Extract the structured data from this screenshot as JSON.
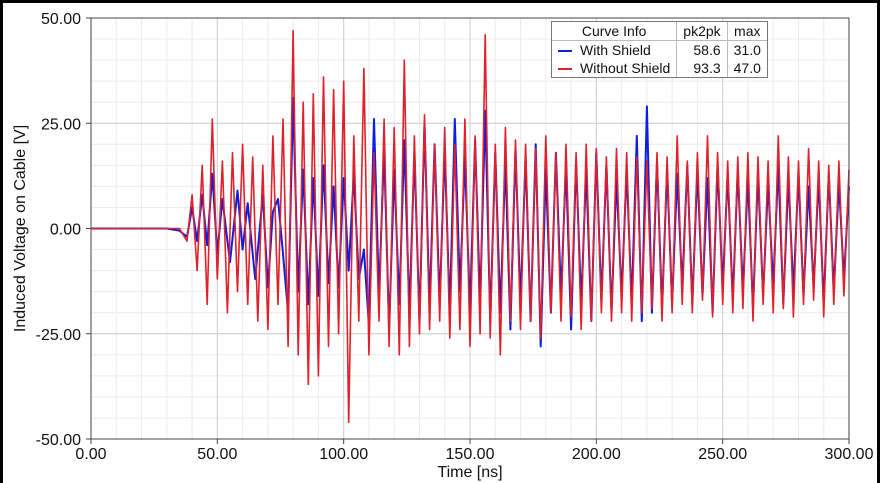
{
  "chart_data": {
    "type": "line",
    "xlabel": "Time [ns]",
    "ylabel": "Induced Voltage on Cable [V]",
    "xlim": [
      0,
      300
    ],
    "ylim": [
      -50,
      50
    ],
    "x_ticks": [
      "0.00",
      "50.00",
      "100.00",
      "150.00",
      "200.00",
      "250.00",
      "300.00"
    ],
    "y_ticks": [
      "50.00",
      "25.00",
      "0.00",
      "-25.00",
      "-50.00"
    ],
    "grid": true,
    "legend_position": "top-right",
    "legend": {
      "headers": [
        "Curve Info",
        "pk2pk",
        "max"
      ]
    },
    "series": [
      {
        "name": "With Shield",
        "color": "#0a1fe0",
        "pk2pk": "58.6",
        "max": "31.0",
        "points": [
          [
            0,
            0
          ],
          [
            30,
            0
          ],
          [
            35,
            -0.5
          ],
          [
            38,
            -2
          ],
          [
            40,
            5
          ],
          [
            42,
            -3
          ],
          [
            44,
            8
          ],
          [
            46,
            -4
          ],
          [
            48,
            13
          ],
          [
            50,
            -6
          ],
          [
            52,
            7
          ],
          [
            55,
            -8
          ],
          [
            58,
            9
          ],
          [
            60,
            -5
          ],
          [
            62,
            6
          ],
          [
            65,
            -12
          ],
          [
            68,
            8
          ],
          [
            70,
            -14
          ],
          [
            72,
            4
          ],
          [
            74,
            7
          ],
          [
            76,
            -6
          ],
          [
            78,
            -20
          ],
          [
            80,
            31
          ],
          [
            82,
            -15
          ],
          [
            84,
            14
          ],
          [
            86,
            -18
          ],
          [
            88,
            12
          ],
          [
            90,
            -16
          ],
          [
            92,
            15
          ],
          [
            94,
            -13
          ],
          [
            96,
            10
          ],
          [
            98,
            -14
          ],
          [
            100,
            12
          ],
          [
            102,
            -10
          ],
          [
            104,
            13
          ],
          [
            106,
            -12
          ],
          [
            108,
            -5
          ],
          [
            110,
            -23
          ],
          [
            112,
            26
          ],
          [
            114,
            -16
          ],
          [
            116,
            19
          ],
          [
            118,
            -24
          ],
          [
            120,
            14
          ],
          [
            122,
            -18
          ],
          [
            124,
            21
          ],
          [
            126,
            -20
          ],
          [
            128,
            18
          ],
          [
            130,
            -22
          ],
          [
            132,
            25
          ],
          [
            134,
            -19
          ],
          [
            136,
            20
          ],
          [
            138,
            -18
          ],
          [
            140,
            19
          ],
          [
            142,
            -20
          ],
          [
            144,
            26
          ],
          [
            146,
            -15
          ],
          [
            148,
            17
          ],
          [
            150,
            -20
          ],
          [
            152,
            21
          ],
          [
            154,
            -18
          ],
          [
            156,
            28
          ],
          [
            158,
            -22
          ],
          [
            160,
            18
          ],
          [
            162,
            -20
          ],
          [
            164,
            16
          ],
          [
            166,
            -24
          ],
          [
            168,
            19
          ],
          [
            170,
            -18
          ],
          [
            172,
            17
          ],
          [
            174,
            -22
          ],
          [
            176,
            20
          ],
          [
            178,
            -28
          ],
          [
            180,
            14
          ],
          [
            182,
            -20
          ],
          [
            184,
            18
          ],
          [
            186,
            -16
          ],
          [
            188,
            15
          ],
          [
            190,
            -24
          ],
          [
            192,
            16
          ],
          [
            194,
            -18
          ],
          [
            196,
            14
          ],
          [
            198,
            -22
          ],
          [
            200,
            18
          ],
          [
            202,
            -17
          ],
          [
            204,
            15
          ],
          [
            206,
            -20
          ],
          [
            208,
            12
          ],
          [
            210,
            -16
          ],
          [
            212,
            14
          ],
          [
            214,
            -18
          ],
          [
            216,
            22
          ],
          [
            218,
            -22
          ],
          [
            220,
            29
          ],
          [
            222,
            -20
          ],
          [
            224,
            16
          ],
          [
            226,
            -19
          ],
          [
            228,
            14
          ],
          [
            230,
            -18
          ],
          [
            232,
            13
          ],
          [
            234,
            -14
          ],
          [
            236,
            15
          ],
          [
            238,
            -18
          ],
          [
            240,
            14
          ],
          [
            242,
            -16
          ],
          [
            244,
            12
          ],
          [
            246,
            -20
          ],
          [
            248,
            15
          ],
          [
            250,
            -14
          ],
          [
            252,
            13
          ],
          [
            254,
            -17
          ],
          [
            256,
            14
          ],
          [
            258,
            -15
          ],
          [
            260,
            12
          ],
          [
            262,
            -19
          ],
          [
            264,
            13
          ],
          [
            266,
            -16
          ],
          [
            268,
            11
          ],
          [
            270,
            -14
          ],
          [
            272,
            15
          ],
          [
            274,
            -18
          ],
          [
            276,
            12
          ],
          [
            278,
            -15
          ],
          [
            280,
            13
          ],
          [
            282,
            -16
          ],
          [
            284,
            10
          ],
          [
            286,
            -14
          ],
          [
            288,
            12
          ],
          [
            290,
            -18
          ],
          [
            292,
            13
          ],
          [
            294,
            -15
          ],
          [
            296,
            11
          ],
          [
            298,
            -12
          ],
          [
            300,
            10
          ]
        ]
      },
      {
        "name": "Without Shield",
        "color": "#e0202a",
        "pk2pk": "93.3",
        "max": "47.0",
        "points": [
          [
            0,
            0
          ],
          [
            30,
            0
          ],
          [
            35,
            0
          ],
          [
            38,
            -3
          ],
          [
            40,
            8
          ],
          [
            42,
            -10
          ],
          [
            44,
            15
          ],
          [
            46,
            -18
          ],
          [
            48,
            26
          ],
          [
            50,
            -12
          ],
          [
            52,
            16
          ],
          [
            54,
            -20
          ],
          [
            56,
            18
          ],
          [
            58,
            -15
          ],
          [
            60,
            20
          ],
          [
            62,
            -18
          ],
          [
            64,
            17
          ],
          [
            66,
            -22
          ],
          [
            68,
            15
          ],
          [
            70,
            -24
          ],
          [
            72,
            22
          ],
          [
            74,
            -18
          ],
          [
            76,
            26
          ],
          [
            78,
            -28
          ],
          [
            80,
            47
          ],
          [
            82,
            -30
          ],
          [
            84,
            30
          ],
          [
            86,
            -37
          ],
          [
            88,
            32
          ],
          [
            90,
            -35
          ],
          [
            92,
            36
          ],
          [
            94,
            -28
          ],
          [
            96,
            33
          ],
          [
            98,
            -25
          ],
          [
            100,
            35
          ],
          [
            102,
            -46
          ],
          [
            104,
            22
          ],
          [
            106,
            -22
          ],
          [
            108,
            38
          ],
          [
            110,
            -30
          ],
          [
            112,
            18
          ],
          [
            114,
            -22
          ],
          [
            116,
            26
          ],
          [
            118,
            -28
          ],
          [
            120,
            24
          ],
          [
            122,
            -30
          ],
          [
            124,
            40
          ],
          [
            126,
            -28
          ],
          [
            128,
            22
          ],
          [
            130,
            -25
          ],
          [
            132,
            27
          ],
          [
            134,
            -24
          ],
          [
            136,
            20
          ],
          [
            138,
            -22
          ],
          [
            140,
            24
          ],
          [
            142,
            -26
          ],
          [
            144,
            20
          ],
          [
            146,
            -24
          ],
          [
            148,
            26
          ],
          [
            150,
            -28
          ],
          [
            152,
            22
          ],
          [
            154,
            -25
          ],
          [
            156,
            46
          ],
          [
            158,
            -26
          ],
          [
            160,
            20
          ],
          [
            162,
            -30
          ],
          [
            164,
            24
          ],
          [
            166,
            -22
          ],
          [
            168,
            21
          ],
          [
            170,
            -24
          ],
          [
            172,
            20
          ],
          [
            174,
            -22
          ],
          [
            176,
            19
          ],
          [
            178,
            -26
          ],
          [
            180,
            22
          ],
          [
            182,
            -20
          ],
          [
            184,
            18
          ],
          [
            186,
            -22
          ],
          [
            188,
            20
          ],
          [
            190,
            -21
          ],
          [
            192,
            18
          ],
          [
            194,
            -24
          ],
          [
            196,
            20
          ],
          [
            198,
            -22
          ],
          [
            200,
            19
          ],
          [
            202,
            -20
          ],
          [
            204,
            17
          ],
          [
            206,
            -22
          ],
          [
            208,
            19
          ],
          [
            210,
            -20
          ],
          [
            212,
            18
          ],
          [
            214,
            -22
          ],
          [
            216,
            17
          ],
          [
            218,
            -20
          ],
          [
            220,
            16
          ],
          [
            222,
            -19
          ],
          [
            224,
            18
          ],
          [
            226,
            -22
          ],
          [
            228,
            17
          ],
          [
            230,
            -20
          ],
          [
            232,
            22
          ],
          [
            234,
            -18
          ],
          [
            236,
            16
          ],
          [
            238,
            -20
          ],
          [
            240,
            18
          ],
          [
            242,
            -17
          ],
          [
            244,
            22
          ],
          [
            246,
            -21
          ],
          [
            248,
            18
          ],
          [
            250,
            -18
          ],
          [
            252,
            16
          ],
          [
            254,
            -20
          ],
          [
            256,
            17
          ],
          [
            258,
            -19
          ],
          [
            260,
            18
          ],
          [
            262,
            -22
          ],
          [
            264,
            17
          ],
          [
            266,
            -18
          ],
          [
            268,
            16
          ],
          [
            270,
            -20
          ],
          [
            272,
            22
          ],
          [
            274,
            -19
          ],
          [
            276,
            17
          ],
          [
            278,
            -21
          ],
          [
            280,
            16
          ],
          [
            282,
            -18
          ],
          [
            284,
            19
          ],
          [
            286,
            -17
          ],
          [
            288,
            16
          ],
          [
            290,
            -21
          ],
          [
            292,
            15
          ],
          [
            294,
            -18
          ],
          [
            296,
            16
          ],
          [
            298,
            -16
          ],
          [
            300,
            14
          ]
        ]
      }
    ]
  }
}
